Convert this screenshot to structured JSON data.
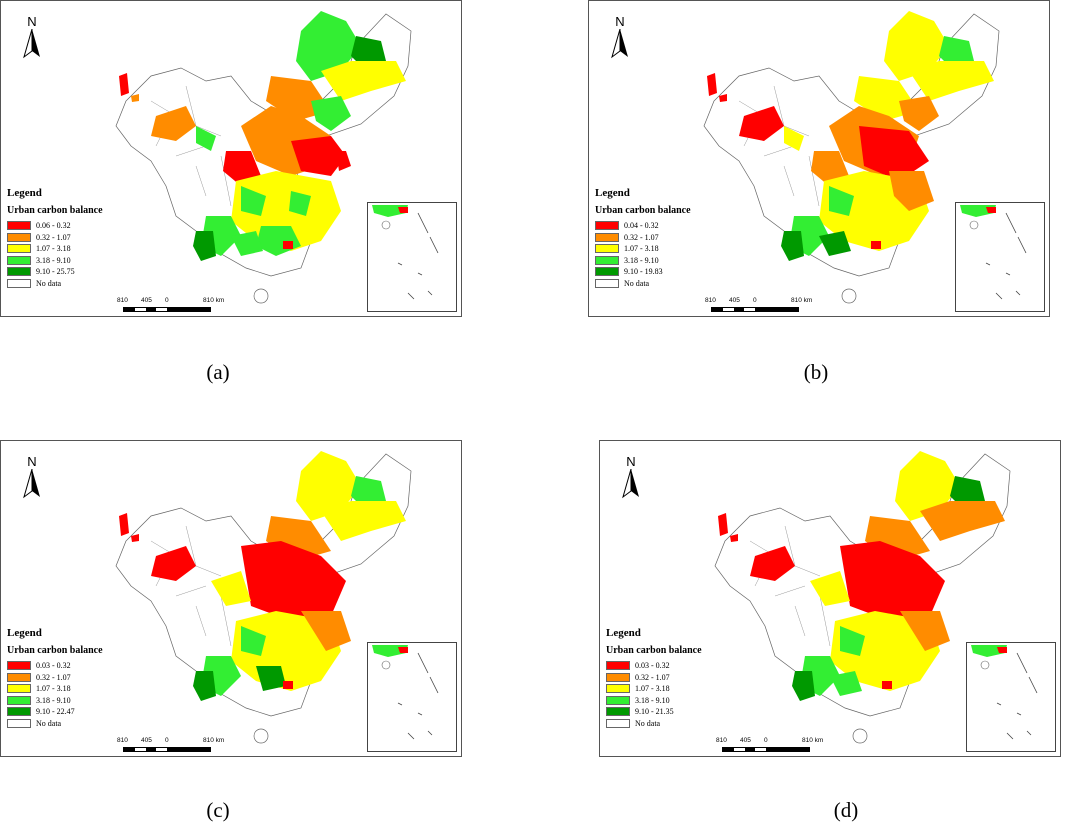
{
  "north_label": "N",
  "legend": {
    "title": "Legend",
    "subtitle": "Urban carbon balance",
    "colors": [
      "#ff0000",
      "#ff8c00",
      "#ffff00",
      "#33ee33",
      "#009900",
      "#ffffff"
    ],
    "no_data": "No data"
  },
  "scale": {
    "labels": [
      "810",
      "405",
      "0",
      "810 km"
    ]
  },
  "panels": [
    {
      "caption": "(a)",
      "classes": [
        "0.06 - 0.32",
        "0.32 - 1.07",
        "1.07 - 3.18",
        "3.18 - 9.10",
        "9.10 - 25.75"
      ]
    },
    {
      "caption": "(b)",
      "classes": [
        "0.04 - 0.32",
        "0.32 - 1.07",
        "1.07 - 3.18",
        "3.18 - 9.10",
        "9.10 - 19.83"
      ]
    },
    {
      "caption": "(c)",
      "classes": [
        "0.03 - 0.32",
        "0.32 - 1.07",
        "1.07 - 3.18",
        "3.18 - 9.10",
        "9.10 - 22.47"
      ]
    },
    {
      "caption": "(d)",
      "classes": [
        "0.03 - 0.32",
        "0.32 - 1.07",
        "1.07 - 3.18",
        "3.18 - 9.10",
        "9.10 - 21.35"
      ]
    }
  ]
}
